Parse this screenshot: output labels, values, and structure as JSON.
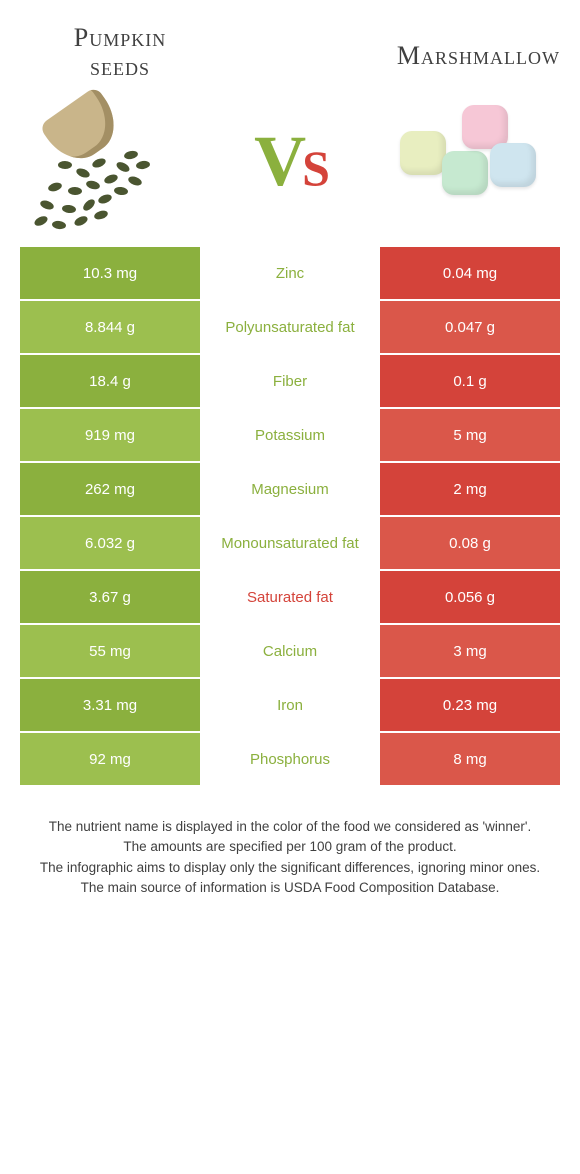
{
  "colors": {
    "left_a": "#8bb03e",
    "left_b": "#9cbf4f",
    "right_a": "#d4433a",
    "right_b": "#da574a",
    "mid_bg": "#ffffff",
    "text_dark": "#404040"
  },
  "left_food": {
    "name_line1": "Pumpkin",
    "name_line2": "seeds"
  },
  "right_food": {
    "name": "Marshmallow"
  },
  "vs": {
    "v": "V",
    "s": "s"
  },
  "rows": [
    {
      "left": "10.3 mg",
      "label": "Zinc",
      "right": "0.04 mg",
      "winner": "left"
    },
    {
      "left": "8.844 g",
      "label": "Polyunsaturated fat",
      "right": "0.047 g",
      "winner": "left"
    },
    {
      "left": "18.4 g",
      "label": "Fiber",
      "right": "0.1 g",
      "winner": "left"
    },
    {
      "left": "919 mg",
      "label": "Potassium",
      "right": "5 mg",
      "winner": "left"
    },
    {
      "left": "262 mg",
      "label": "Magnesium",
      "right": "2 mg",
      "winner": "left"
    },
    {
      "left": "6.032 g",
      "label": "Monounsaturated fat",
      "right": "0.08 g",
      "winner": "left"
    },
    {
      "left": "3.67 g",
      "label": "Saturated fat",
      "right": "0.056 g",
      "winner": "right"
    },
    {
      "left": "55 mg",
      "label": "Calcium",
      "right": "3 mg",
      "winner": "left"
    },
    {
      "left": "3.31 mg",
      "label": "Iron",
      "right": "0.23 mg",
      "winner": "left"
    },
    {
      "left": "92 mg",
      "label": "Phosphorus",
      "right": "8 mg",
      "winner": "left"
    }
  ],
  "footer": {
    "l1": "The nutrient name is displayed in the color of the food we considered as 'winner'.",
    "l2": "The amounts are specified per 100 gram of the product.",
    "l3": "The infographic aims to display only the significant differences, ignoring minor ones.",
    "l4": "The main source of information is USDA Food Composition Database."
  },
  "seeds": [
    {
      "l": 30,
      "t": 70
    },
    {
      "l": 48,
      "t": 78
    },
    {
      "l": 64,
      "t": 68
    },
    {
      "l": 20,
      "t": 92
    },
    {
      "l": 40,
      "t": 96
    },
    {
      "l": 58,
      "t": 90
    },
    {
      "l": 76,
      "t": 84
    },
    {
      "l": 88,
      "t": 72
    },
    {
      "l": 12,
      "t": 110
    },
    {
      "l": 34,
      "t": 114
    },
    {
      "l": 54,
      "t": 110
    },
    {
      "l": 70,
      "t": 104
    },
    {
      "l": 86,
      "t": 96
    },
    {
      "l": 100,
      "t": 86
    },
    {
      "l": 6,
      "t": 126
    },
    {
      "l": 24,
      "t": 130
    },
    {
      "l": 46,
      "t": 126
    },
    {
      "l": 66,
      "t": 120
    },
    {
      "l": 108,
      "t": 70
    },
    {
      "l": 96,
      "t": 60
    }
  ],
  "mallows": [
    {
      "color": "#e8eec0",
      "l": 8,
      "t": 40,
      "r": 0
    },
    {
      "color": "#c6e9d0",
      "l": 50,
      "t": 60,
      "r": 0
    },
    {
      "color": "#f6c7d6",
      "l": 70,
      "t": 14,
      "r": 0
    },
    {
      "color": "#cfe5ef",
      "l": 98,
      "t": 52,
      "r": 0
    }
  ]
}
